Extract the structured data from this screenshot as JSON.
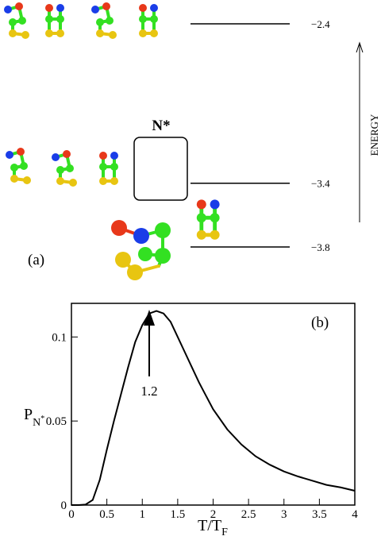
{
  "chart_data": [
    {
      "type": "energy-levels",
      "title": "(a)",
      "ylabel": "ENERGY",
      "highlight_label": "N*",
      "values": [
        -2.4,
        -3.4,
        -3.8
      ],
      "value_labels": [
        "−2.4",
        "−3.4",
        "−3.8"
      ],
      "ylim": [
        -3.8,
        -2.4
      ],
      "color": "#000000"
    },
    {
      "type": "line",
      "title": "(b)",
      "xlabel": [
        "T/T",
        "F"
      ],
      "ylabel": [
        "P",
        "N",
        "*"
      ],
      "annotations": [
        "1.2"
      ],
      "x": [
        0,
        0.1,
        0.2,
        0.3,
        0.4,
        0.5,
        0.6,
        0.7,
        0.8,
        0.9,
        1.0,
        1.1,
        1.2,
        1.3,
        1.4,
        1.5,
        1.6,
        1.7,
        1.8,
        1.9,
        2.0,
        2.2,
        2.4,
        2.6,
        2.8,
        3.0,
        3.2,
        3.4,
        3.6,
        3.8,
        4.0
      ],
      "series": [
        {
          "color": "#000000",
          "values": [
            0,
            0,
            0.0003,
            0.003,
            0.015,
            0.033,
            0.05,
            0.066,
            0.082,
            0.097,
            0.107,
            0.114,
            0.1155,
            0.114,
            0.109,
            0.1,
            0.091,
            0.082,
            0.073,
            0.065,
            0.057,
            0.045,
            0.036,
            0.029,
            0.024,
            0.02,
            0.017,
            0.0145,
            0.012,
            0.0105,
            0.0085
          ]
        }
      ],
      "xlim": [
        0,
        4
      ],
      "ylim": [
        0,
        0.12
      ],
      "xticks": [
        0,
        0.5,
        1,
        1.5,
        2,
        2.5,
        3,
        3.5,
        4
      ],
      "yticks": [
        0,
        0.05,
        0.1
      ]
    }
  ]
}
